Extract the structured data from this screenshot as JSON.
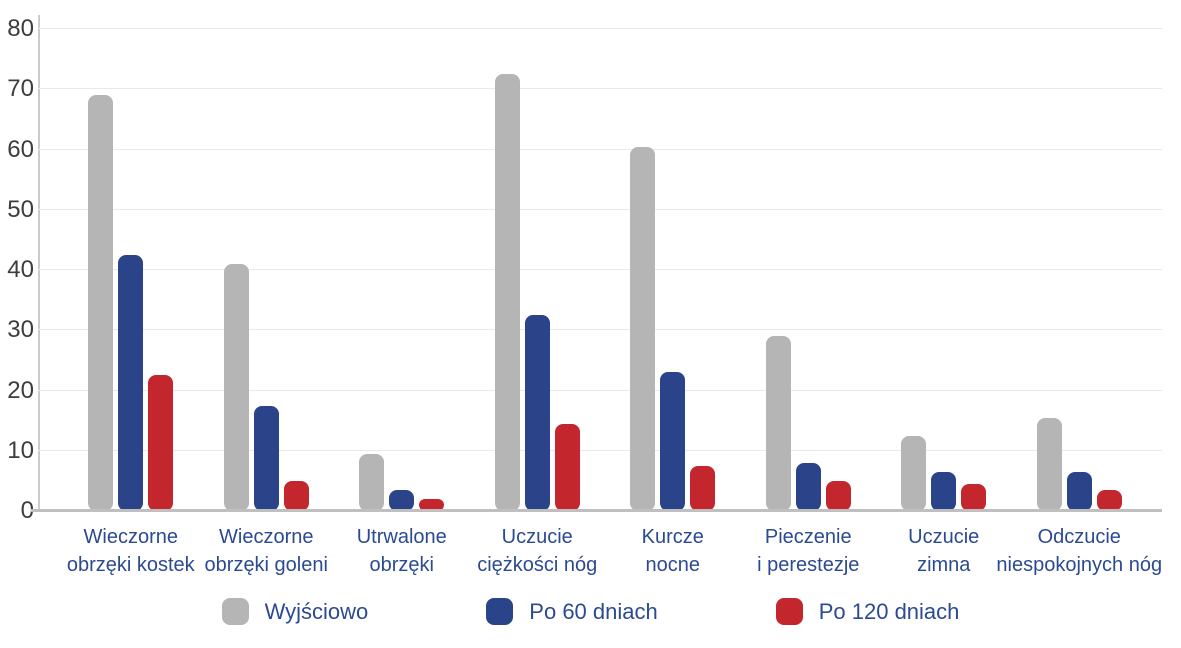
{
  "chart_data": {
    "type": "bar",
    "title": "",
    "categories": [
      "Wieczorne\nobrzęki kostek",
      "Wieczorne\nobrzęki goleni",
      "Utrwalone\nobrzęki",
      "Uczucie\nciężkości nóg",
      "Kurcze\nnocne",
      "Pieczenie\ni perestezje",
      "Uczucie\nzimna",
      "Odczucie\nniespokojnych nóg"
    ],
    "series": [
      {
        "name": "Wyjściowo",
        "color": "#b5b5b5",
        "values": [
          69,
          41,
          9.5,
          72.5,
          60.5,
          29,
          12.5,
          15.5
        ]
      },
      {
        "name": "Po 60 dniach",
        "color": "#2b4489",
        "values": [
          42.5,
          17.5,
          3.5,
          32.5,
          23,
          8,
          6.5,
          6.5
        ]
      },
      {
        "name": "Po 120 dniach",
        "color": "#c4262e",
        "values": [
          22.5,
          5,
          2,
          14.5,
          7.5,
          5,
          4.5,
          3.5
        ]
      }
    ],
    "ylim": [
      0,
      80
    ],
    "yticks": [
      0,
      10,
      20,
      30,
      40,
      50,
      60,
      70,
      80
    ],
    "xlabel": "",
    "ylabel": "",
    "grid": "horizontal",
    "legend_position": "bottom"
  },
  "colors": {
    "background": "#ffffff",
    "axis_text": "#3d3d3d",
    "label_text": "#2c4a92",
    "gridline": "#e9e9eb",
    "axis_line": "#bfbfbf"
  }
}
